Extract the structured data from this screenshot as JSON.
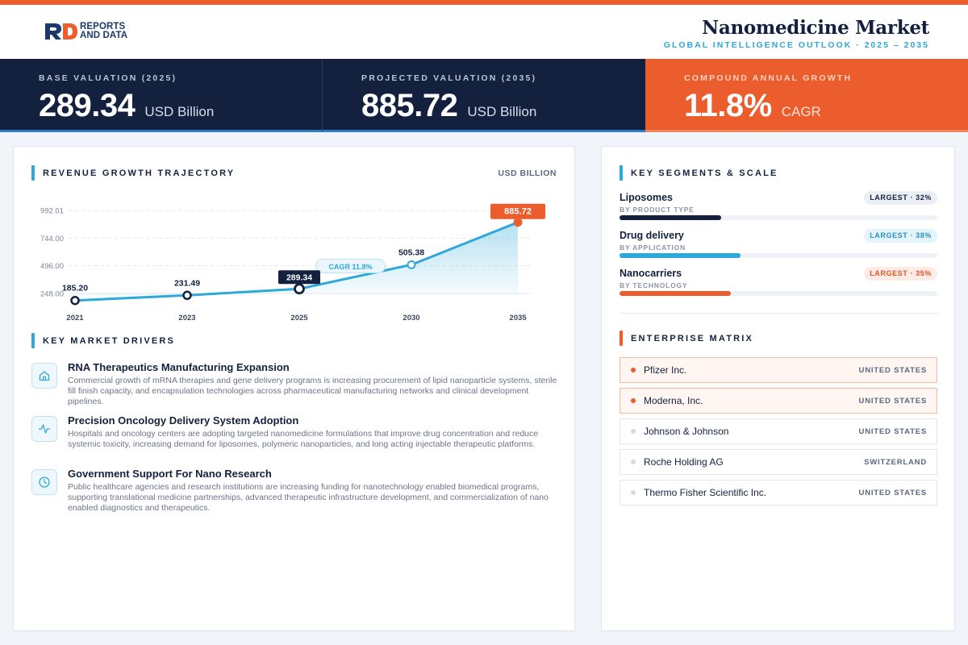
{
  "header": {
    "logo_line1": "REPORTS",
    "logo_line2": "AND DATA",
    "title": "Nanomedicine Market",
    "subtitle": "GLOBAL INTELLIGENCE OUTLOOK · 2025 – 2035"
  },
  "kpis": [
    {
      "label": "BASE VALUATION (2025)",
      "value": "289.34",
      "unit": "USD Billion"
    },
    {
      "label": "PROJECTED VALUATION (2035)",
      "value": "885.72",
      "unit": "USD Billion"
    },
    {
      "label": "COMPOUND ANNUAL GROWTH",
      "value": "11.8%",
      "unit": "CAGR"
    }
  ],
  "chart_section": {
    "title": "REVENUE GROWTH TRAJECTORY",
    "unit_label": "USD BILLION"
  },
  "chart_data": {
    "type": "line",
    "x": [
      "2021",
      "2023",
      "2025",
      "2030",
      "2035"
    ],
    "values": [
      185.2,
      231.49,
      289.34,
      505.38,
      885.72
    ],
    "data_labels": [
      "185.20",
      "231.49",
      "289.34",
      "505.38",
      "885.72"
    ],
    "y_ticks": [
      "992.01",
      "744.00",
      "496.00",
      "248.00"
    ],
    "y_tick_values": [
      992.01,
      744.0,
      496.0,
      248.0
    ],
    "ylim": [
      248.0,
      992.01
    ],
    "annotation": "CAGR 11.8%",
    "grid": true,
    "colors": {
      "line": "#2da8d8",
      "highlight": "#ec5d2d",
      "label_dark": "#13213f"
    }
  },
  "drivers_section": {
    "title": "KEY MARKET DRIVERS",
    "items": [
      {
        "icon": "home-icon",
        "title": "RNA Therapeutics Manufacturing Expansion",
        "desc": "Commercial growth of mRNA therapies and gene delivery programs is increasing procurement of lipid nanoparticle systems, sterile fill finish capacity, and encapsulation technologies across pharmaceutical manufacturing networks and clinical development pipelines."
      },
      {
        "icon": "activity-icon",
        "title": "Precision Oncology Delivery System Adoption",
        "desc": "Hospitals and oncology centers are adopting targeted nanomedicine formulations that improve drug concentration and reduce systemic toxicity, increasing demand for liposomes, polymeric nanoparticles, and long acting injectable therapeutic platforms."
      },
      {
        "icon": "clock-icon",
        "title": "Government Support For Nano Research",
        "desc": "Public healthcare agencies and research institutions are increasing funding for nanotechnology enabled biomedical programs, supporting translational medicine partnerships, advanced therapeutic infrastructure development, and commercialization of nano enabled diagnostics and therapeutics."
      }
    ]
  },
  "segments_section": {
    "title": "KEY SEGMENTS & SCALE",
    "items": [
      {
        "name": "Liposomes",
        "by": "BY PRODUCT TYPE",
        "badge": "LARGEST · 32%",
        "share": 0.32,
        "color": "#13213f",
        "badge_bg": "#eceff4",
        "badge_fg": "#13213f"
      },
      {
        "name": "Drug delivery",
        "by": "BY APPLICATION",
        "badge": "LARGEST · 38%",
        "share": 0.38,
        "color": "#2da8d8",
        "badge_bg": "#e4f4fb",
        "badge_fg": "#2a8fc0"
      },
      {
        "name": "Nanocarriers",
        "by": "BY TECHNOLOGY",
        "badge": "LARGEST · 35%",
        "share": 0.35,
        "color": "#ec5d2d",
        "badge_bg": "#fdece5",
        "badge_fg": "#e0552a"
      }
    ]
  },
  "matrix_section": {
    "title": "ENTERPRISE MATRIX",
    "items": [
      {
        "name": "Pfizer Inc.",
        "country": "UNITED STATES",
        "highlight": true
      },
      {
        "name": "Moderna, Inc.",
        "country": "UNITED STATES",
        "highlight": true
      },
      {
        "name": "Johnson & Johnson",
        "country": "UNITED STATES",
        "highlight": false
      },
      {
        "name": "Roche Holding AG",
        "country": "SWITZERLAND",
        "highlight": false
      },
      {
        "name": "Thermo Fisher Scientific Inc.",
        "country": "UNITED STATES",
        "highlight": false
      }
    ]
  }
}
